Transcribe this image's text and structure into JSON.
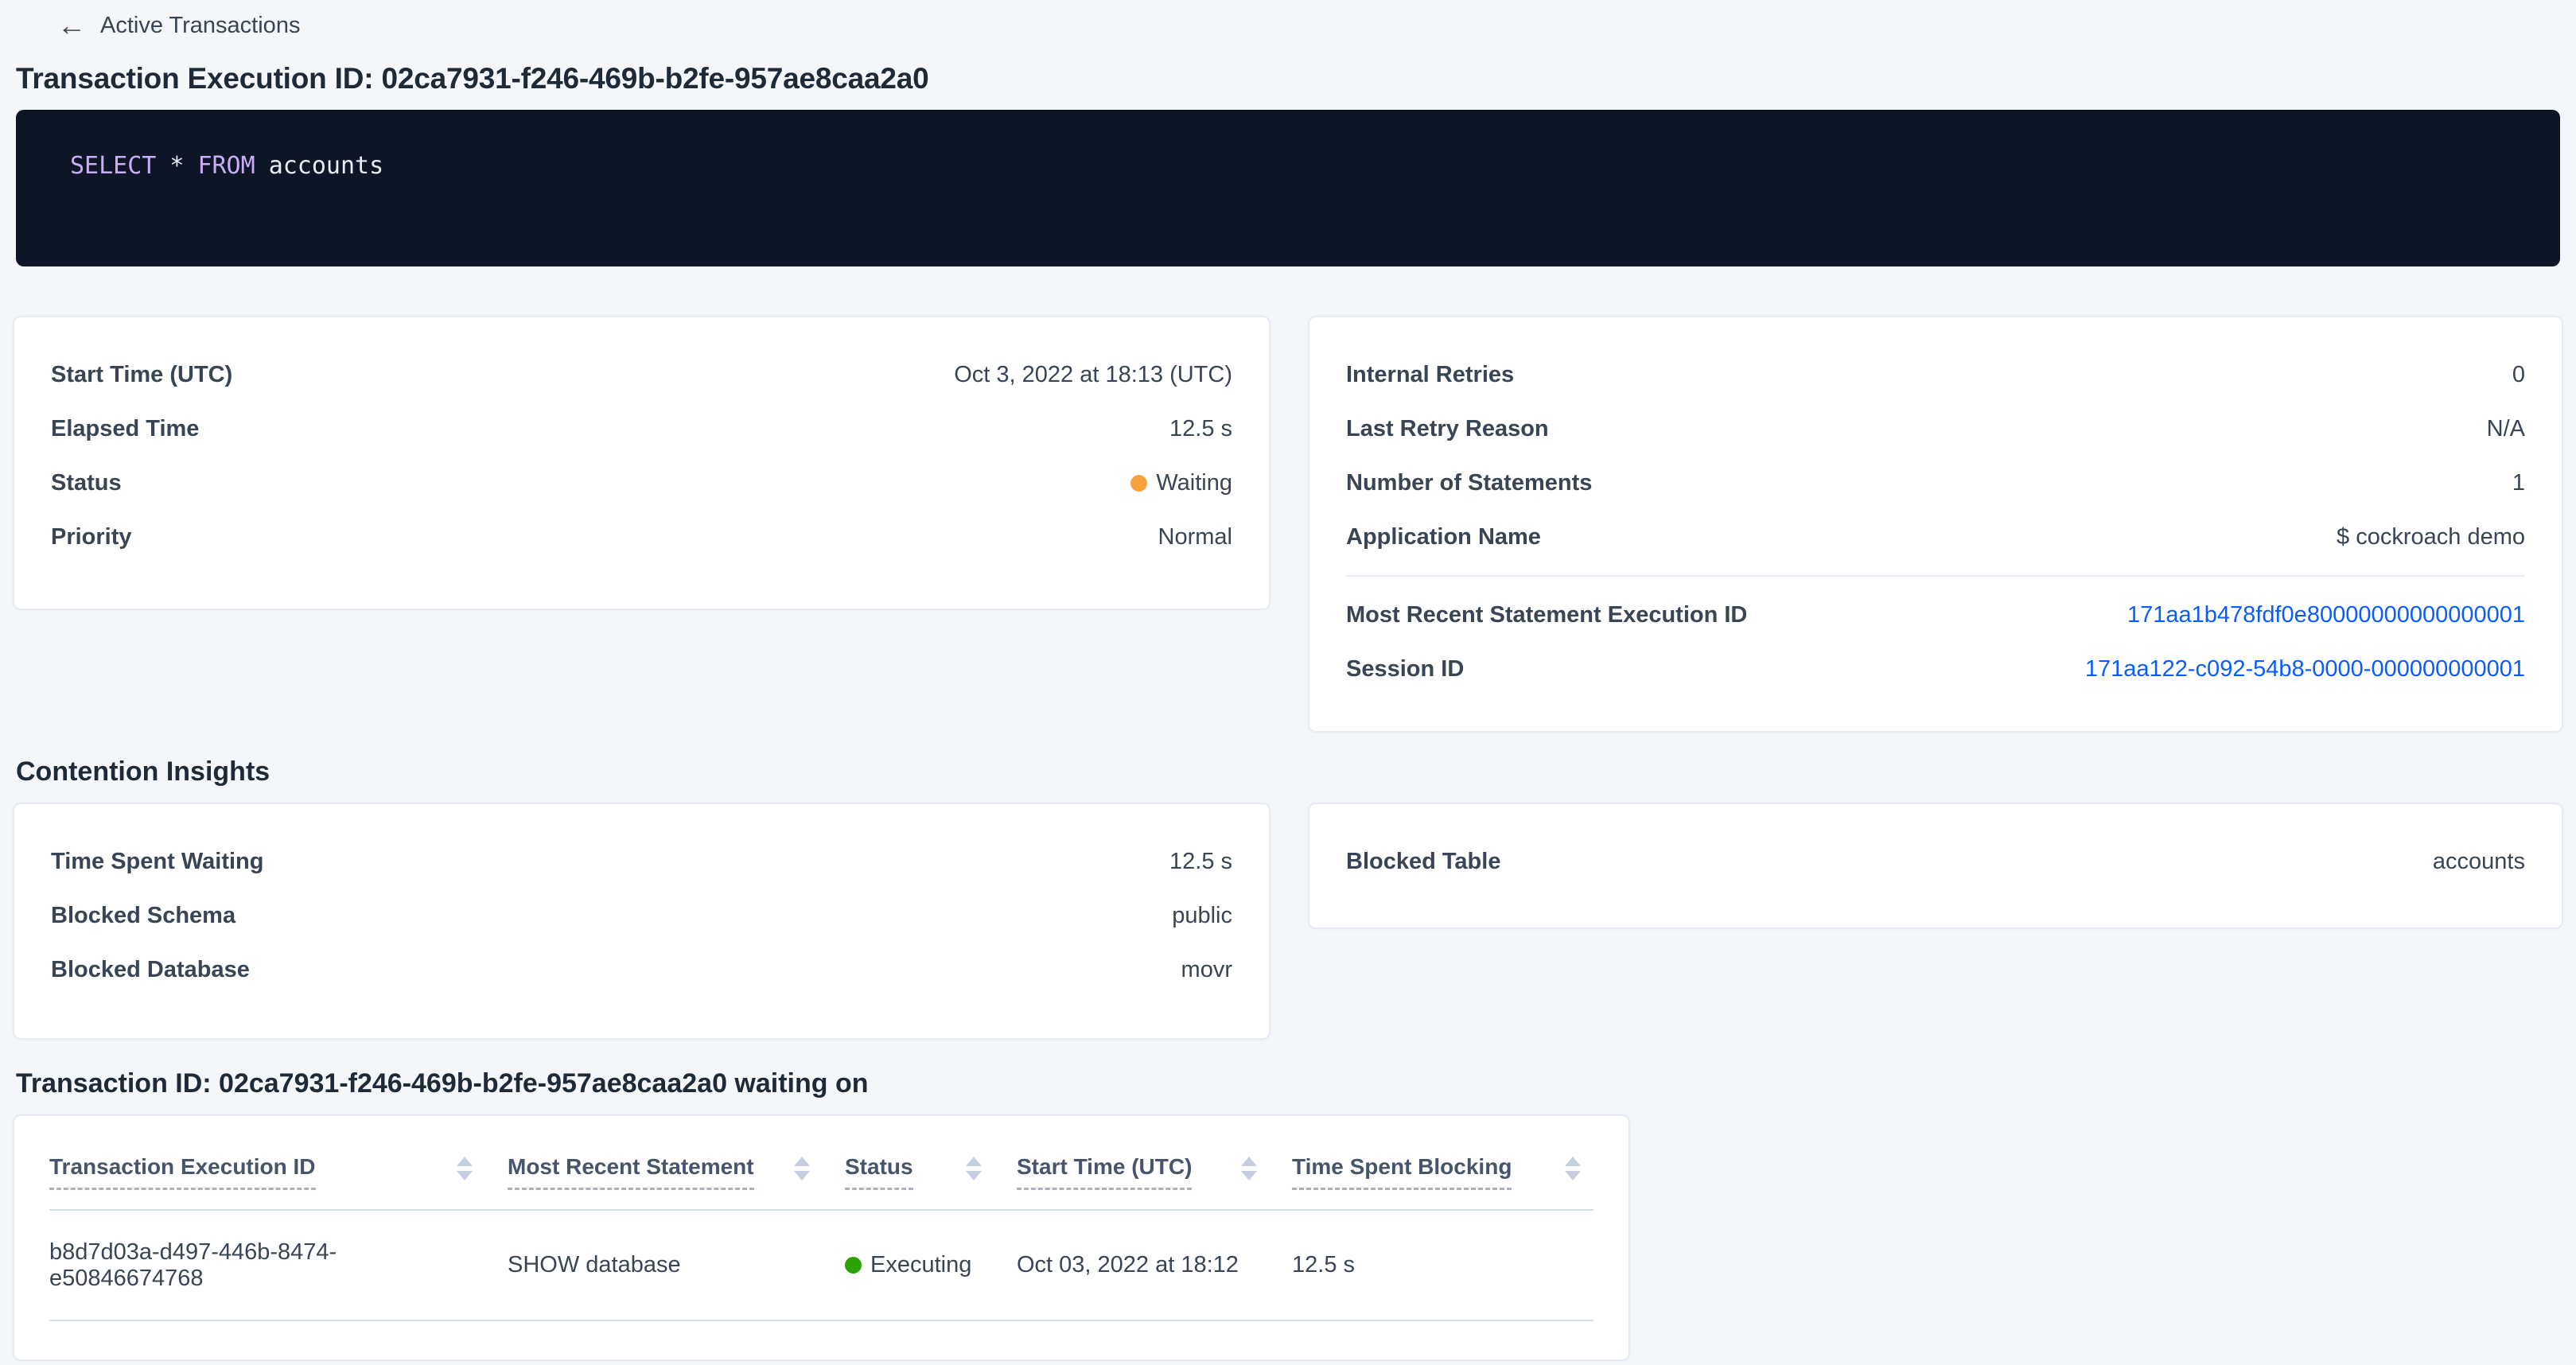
{
  "breadcrumb": {
    "back_label": "Active Transactions",
    "back_icon": "←"
  },
  "page": {
    "title": "Transaction Execution ID: 02ca7931-f246-469b-b2fe-957ae8caa2a0"
  },
  "sql": {
    "select": "SELECT",
    "star": "*",
    "from": "FROM",
    "table": "accounts"
  },
  "summary": {
    "start_time": {
      "label": "Start Time (UTC)",
      "value": "Oct 3, 2022 at 18:13 (UTC)"
    },
    "elapsed_time": {
      "label": "Elapsed Time",
      "value": "12.5 s"
    },
    "status": {
      "label": "Status",
      "value": "Waiting"
    },
    "priority": {
      "label": "Priority",
      "value": "Normal"
    }
  },
  "stats": {
    "internal_retries": {
      "label": "Internal Retries",
      "value": "0"
    },
    "last_retry_reason": {
      "label": "Last Retry Reason",
      "value": "N/A"
    },
    "num_statements": {
      "label": "Number of Statements",
      "value": "1"
    },
    "application_name": {
      "label": "Application Name",
      "value": "$ cockroach demo"
    },
    "most_recent_stmt_id": {
      "label": "Most Recent Statement Execution ID",
      "value": "171aa1b478fdf0e80000000000000001"
    },
    "session_id": {
      "label": "Session ID",
      "value": "171aa122-c092-54b8-0000-000000000001"
    }
  },
  "contention": {
    "heading": "Contention Insights",
    "time_spent_waiting": {
      "label": "Time Spent Waiting",
      "value": "12.5 s"
    },
    "blocked_schema": {
      "label": "Blocked Schema",
      "value": "public"
    },
    "blocked_database": {
      "label": "Blocked Database",
      "value": "movr"
    },
    "blocked_table": {
      "label": "Blocked Table",
      "value": "accounts"
    }
  },
  "waiting_table": {
    "heading": "Transaction ID: 02ca7931-f246-469b-b2fe-957ae8caa2a0 waiting on",
    "columns": [
      {
        "label": "Transaction Execution ID"
      },
      {
        "label": "Most Recent Statement"
      },
      {
        "label": "Status"
      },
      {
        "label": "Start Time (UTC)"
      },
      {
        "label": "Time Spent Blocking"
      }
    ],
    "rows": [
      {
        "transaction_execution_id": "b8d7d03a-d497-446b-8474-e50846674768",
        "most_recent_statement": "SHOW database",
        "status": "Executing",
        "start_time": "Oct 03, 2022 at 18:12",
        "time_spent_blocking": "12.5 s"
      }
    ]
  },
  "colors": {
    "status_waiting": "#f9a13c",
    "status_executing": "#2aa300",
    "link": "#0b5cff",
    "sql_keyword": "#c9aef5",
    "sql_background": "#0e1526",
    "page_background": "#f4f6fa"
  }
}
